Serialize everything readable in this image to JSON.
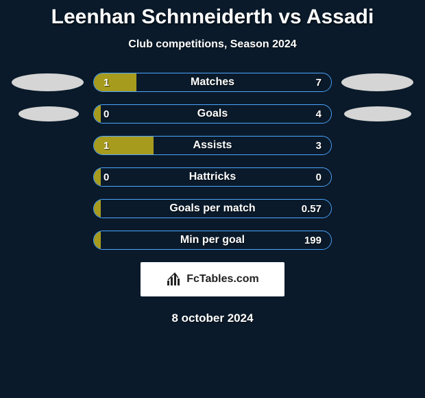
{
  "title": "Leenhan Schnneiderth vs Assadi",
  "subtitle": "Club competitions, Season 2024",
  "colors": {
    "background": "#0a1a2a",
    "bar_border": "#4da6ff",
    "left_fill": "#a79b1e",
    "right_fill": "#0a1a2a",
    "ellipse_left": "#d5d5d5",
    "ellipse_right": "#d5d5d5",
    "text": "#ffffff"
  },
  "ellipses": [
    {
      "left": true,
      "right": true
    },
    {
      "left": true,
      "right": true
    },
    {
      "left": false,
      "right": false
    },
    {
      "left": false,
      "right": false
    },
    {
      "left": false,
      "right": false
    },
    {
      "left": false,
      "right": false
    }
  ],
  "stats": [
    {
      "label": "Matches",
      "left_val": "1",
      "right_val": "7",
      "left_pct": 18.0,
      "right_pct": 82.0
    },
    {
      "label": "Goals",
      "left_val": "0",
      "right_val": "4",
      "left_pct": 3.0,
      "right_pct": 97.0
    },
    {
      "label": "Assists",
      "left_val": "1",
      "right_val": "3",
      "left_pct": 25.0,
      "right_pct": 75.0
    },
    {
      "label": "Hattricks",
      "left_val": "0",
      "right_val": "0",
      "left_pct": 3.0,
      "right_pct": 97.0
    },
    {
      "label": "Goals per match",
      "left_val": "",
      "right_val": "0.57",
      "left_pct": 3.0,
      "right_pct": 97.0
    },
    {
      "label": "Min per goal",
      "left_val": "",
      "right_val": "199",
      "left_pct": 3.0,
      "right_pct": 97.0
    }
  ],
  "branding": "FcTables.com",
  "date": "8 october 2024"
}
